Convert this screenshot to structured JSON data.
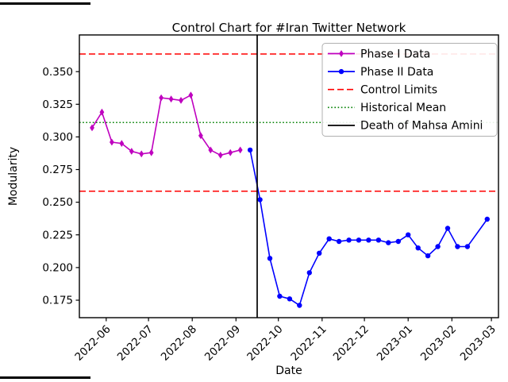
{
  "chart_data": {
    "type": "line",
    "title": "Control Chart for #Iran Twitter Network",
    "xlabel": "Date",
    "ylabel": "Modularity",
    "x_tick_labels": [
      "2022-06",
      "2022-07",
      "2022-08",
      "2022-09",
      "2022-10",
      "2022-11",
      "2022-12",
      "2023-01",
      "2023-02",
      "2023-03"
    ],
    "y_ticks": [
      0.175,
      0.2,
      0.225,
      0.25,
      0.275,
      0.3,
      0.325,
      0.35
    ],
    "ylim": [
      0.1616,
      0.3781
    ],
    "xlim_dates": [
      "2022-05-13",
      "2023-03-06"
    ],
    "grid": false,
    "series": [
      {
        "name": "Phase I Data",
        "color": "#bf00bf",
        "marker": "diamond",
        "style": "solid",
        "points": [
          [
            "2022-05-22",
            0.307
          ],
          [
            "2022-05-29",
            0.319
          ],
          [
            "2022-06-05",
            0.296
          ],
          [
            "2022-06-12",
            0.295
          ],
          [
            "2022-06-19",
            0.289
          ],
          [
            "2022-06-26",
            0.287
          ],
          [
            "2022-07-03",
            0.288
          ],
          [
            "2022-07-10",
            0.33
          ],
          [
            "2022-07-17",
            0.329
          ],
          [
            "2022-07-24",
            0.328
          ],
          [
            "2022-07-31",
            0.332
          ],
          [
            "2022-08-07",
            0.301
          ],
          [
            "2022-08-14",
            0.29
          ],
          [
            "2022-08-21",
            0.286
          ],
          [
            "2022-08-28",
            0.288
          ],
          [
            "2022-09-04",
            0.29
          ]
        ]
      },
      {
        "name": "Phase II Data",
        "color": "#0000ff",
        "marker": "circle",
        "style": "solid",
        "points": [
          [
            "2022-09-11",
            0.29
          ],
          [
            "2022-09-18",
            0.252
          ],
          [
            "2022-09-25",
            0.207
          ],
          [
            "2022-10-02",
            0.178
          ],
          [
            "2022-10-09",
            0.176
          ],
          [
            "2022-10-16",
            0.171
          ],
          [
            "2022-10-23",
            0.196
          ],
          [
            "2022-10-30",
            0.211
          ],
          [
            "2022-11-06",
            0.222
          ],
          [
            "2022-11-13",
            0.22
          ],
          [
            "2022-11-20",
            0.221
          ],
          [
            "2022-11-27",
            0.221
          ],
          [
            "2022-12-04",
            0.221
          ],
          [
            "2022-12-11",
            0.221
          ],
          [
            "2022-12-18",
            0.219
          ],
          [
            "2022-12-25",
            0.22
          ],
          [
            "2023-01-01",
            0.225
          ],
          [
            "2023-01-08",
            0.215
          ],
          [
            "2023-01-15",
            0.209
          ],
          [
            "2023-01-22",
            0.216
          ],
          [
            "2023-01-29",
            0.23
          ],
          [
            "2023-02-05",
            0.216
          ],
          [
            "2023-02-12",
            0.216
          ],
          [
            "2023-02-26",
            0.237
          ]
        ]
      }
    ],
    "reference_lines": [
      {
        "name": "Control Limits",
        "type": "hline",
        "style": "dashed",
        "color": "#ff0000",
        "values": [
          0.3635,
          0.2585
        ]
      },
      {
        "name": "Historical Mean",
        "type": "hline",
        "style": "dotted",
        "color": "#008000",
        "values": [
          0.311
        ]
      },
      {
        "name": "Death of Mahsa Amini",
        "type": "vline",
        "style": "solid",
        "color": "#000000",
        "date": "2022-09-16"
      }
    ],
    "legend": {
      "position": "upper right",
      "entries": [
        "Phase I Data",
        "Phase II Data",
        "Control Limits",
        "Historical Mean",
        "Death of Mahsa Amini"
      ]
    }
  }
}
